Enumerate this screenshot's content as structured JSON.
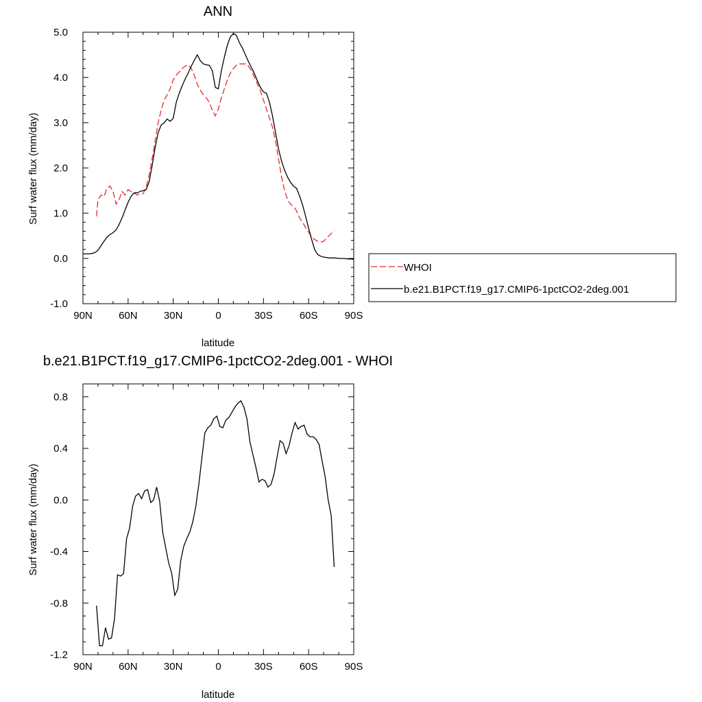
{
  "chart_data": [
    {
      "type": "line",
      "title": "ANN",
      "xlabel": "latitude",
      "ylabel": "Surf water flux (mm/day)",
      "xlim": [
        -90,
        90
      ],
      "ylim": [
        -1.0,
        5.0
      ],
      "x_ticks": [
        -90,
        -60,
        -30,
        0,
        30,
        60,
        90
      ],
      "x_tick_labels": [
        "90N",
        "60N",
        "30N",
        "0",
        "30S",
        "60S",
        "90S"
      ],
      "y_ticks": [
        -1.0,
        0.0,
        1.0,
        2.0,
        3.0,
        4.0,
        5.0
      ],
      "y_tick_labels": [
        "-1.0",
        "0.0",
        "1.0",
        "2.0",
        "3.0",
        "4.0",
        "5.0"
      ],
      "legend_position": "right",
      "series": [
        {
          "name": "WHOI",
          "color": "#e8262a",
          "dash": "dashed",
          "x": [
            -81,
            -80,
            -78,
            -76,
            -74,
            -72,
            -70,
            -68,
            -66,
            -64,
            -62,
            -60,
            -58,
            -56,
            -54,
            -52,
            -50,
            -48,
            -46,
            -44,
            -42,
            -40,
            -38,
            -36,
            -34,
            -32,
            -30,
            -28,
            -26,
            -24,
            -22,
            -20,
            -18,
            -16,
            -14,
            -12,
            -10,
            -8,
            -6,
            -4,
            -2,
            0,
            2,
            4,
            6,
            8,
            10,
            12,
            14,
            16,
            18,
            20,
            22,
            24,
            26,
            28,
            30,
            32,
            34,
            36,
            38,
            40,
            42,
            44,
            46,
            48,
            50,
            52,
            54,
            56,
            58,
            60,
            62,
            64,
            66,
            68,
            70,
            72,
            74,
            76,
            77
          ],
          "y": [
            0.93,
            1.3,
            1.4,
            1.37,
            1.55,
            1.6,
            1.48,
            1.2,
            1.3,
            1.48,
            1.4,
            1.52,
            1.48,
            1.45,
            1.4,
            1.43,
            1.43,
            1.58,
            1.85,
            2.2,
            2.6,
            3.0,
            3.28,
            3.5,
            3.62,
            3.75,
            3.95,
            4.05,
            4.12,
            4.2,
            4.25,
            4.28,
            4.2,
            4.05,
            3.85,
            3.72,
            3.62,
            3.55,
            3.45,
            3.28,
            3.15,
            3.3,
            3.55,
            3.75,
            3.95,
            4.1,
            4.2,
            4.27,
            4.3,
            4.3,
            4.3,
            4.25,
            4.15,
            4.0,
            3.85,
            3.7,
            3.5,
            3.3,
            3.1,
            2.9,
            2.6,
            2.2,
            1.8,
            1.5,
            1.3,
            1.2,
            1.15,
            1.05,
            0.9,
            0.8,
            0.68,
            0.58,
            0.48,
            0.42,
            0.38,
            0.36,
            0.38,
            0.45,
            0.52,
            0.58,
            0.62
          ]
        },
        {
          "name": "b.e21.B1PCT.f19_g17.CMIP6-1pctCO2-2deg.001",
          "color": "#000000",
          "dash": "solid",
          "x": [
            -90,
            -88,
            -86,
            -84,
            -82,
            -80,
            -78,
            -76,
            -74,
            -72,
            -70,
            -68,
            -66,
            -64,
            -62,
            -60,
            -58,
            -56,
            -54,
            -52,
            -50,
            -48,
            -46,
            -44,
            -42,
            -40,
            -38,
            -36,
            -34,
            -32,
            -30,
            -28,
            -26,
            -24,
            -22,
            -20,
            -18,
            -16,
            -14,
            -12,
            -10,
            -8,
            -6,
            -4,
            -2,
            0,
            2,
            4,
            6,
            8,
            10,
            12,
            14,
            16,
            18,
            20,
            22,
            24,
            26,
            28,
            30,
            32,
            34,
            36,
            38,
            40,
            42,
            44,
            46,
            48,
            50,
            52,
            54,
            56,
            58,
            60,
            62,
            64,
            66,
            68,
            70,
            72,
            74,
            76,
            78,
            80,
            82,
            84,
            86,
            88,
            90
          ],
          "y": [
            0.1,
            0.1,
            0.1,
            0.11,
            0.13,
            0.18,
            0.28,
            0.38,
            0.47,
            0.53,
            0.57,
            0.63,
            0.75,
            0.9,
            1.07,
            1.24,
            1.37,
            1.45,
            1.45,
            1.48,
            1.5,
            1.52,
            1.7,
            2.05,
            2.45,
            2.78,
            2.95,
            3.0,
            3.08,
            3.03,
            3.1,
            3.45,
            3.65,
            3.82,
            3.97,
            4.1,
            4.25,
            4.38,
            4.5,
            4.37,
            4.3,
            4.28,
            4.27,
            4.15,
            3.78,
            3.75,
            4.15,
            4.45,
            4.72,
            4.9,
            4.97,
            4.93,
            4.77,
            4.65,
            4.5,
            4.35,
            4.22,
            4.08,
            3.92,
            3.78,
            3.68,
            3.65,
            3.45,
            3.15,
            2.78,
            2.42,
            2.15,
            1.95,
            1.8,
            1.68,
            1.6,
            1.55,
            1.38,
            1.18,
            0.93,
            0.67,
            0.42,
            0.2,
            0.09,
            0.05,
            0.03,
            0.02,
            0.01,
            0.01,
            0.01,
            0.0,
            0.0,
            0.0,
            -0.01,
            -0.01,
            -0.02
          ]
        }
      ]
    },
    {
      "type": "line",
      "title": "b.e21.B1PCT.f19_g17.CMIP6-1pctCO2-2deg.001 - WHOI",
      "xlabel": "latitude",
      "ylabel": "Surf water flux (mm/day)",
      "xlim": [
        -90,
        90
      ],
      "ylim": [
        -1.2,
        0.9
      ],
      "x_ticks": [
        -90,
        -60,
        -30,
        0,
        30,
        60,
        90
      ],
      "x_tick_labels": [
        "90N",
        "60N",
        "30N",
        "0",
        "30S",
        "60S",
        "90S"
      ],
      "y_ticks": [
        -1.2,
        -0.8,
        -0.4,
        0.0,
        0.4,
        0.8
      ],
      "y_tick_labels": [
        "-1.2",
        "-0.8",
        "-0.4",
        "0.0",
        "0.4",
        "0.8"
      ],
      "series": [
        {
          "color": "#000000",
          "dash": "solid",
          "x": [
            -81,
            -79,
            -77,
            -75,
            -73,
            -71,
            -69,
            -67,
            -65,
            -63,
            -61,
            -59,
            -57,
            -55,
            -53,
            -51,
            -49,
            -47,
            -45,
            -43,
            -41,
            -39,
            -37,
            -35,
            -33,
            -31,
            -29,
            -27,
            -25,
            -23,
            -21,
            -19,
            -17,
            -15,
            -13,
            -11,
            -9,
            -7,
            -5,
            -3,
            -1,
            1,
            3,
            5,
            7,
            9,
            11,
            13,
            15,
            17,
            19,
            21,
            23,
            25,
            27,
            29,
            31,
            33,
            35,
            37,
            39,
            41,
            43,
            45,
            47,
            49,
            51,
            53,
            55,
            57,
            59,
            61,
            63,
            65,
            67,
            69,
            71,
            73,
            75,
            77
          ],
          "y": [
            -0.82,
            -1.13,
            -1.13,
            -0.99,
            -1.08,
            -1.07,
            -0.92,
            -0.58,
            -0.59,
            -0.57,
            -0.3,
            -0.22,
            -0.05,
            0.03,
            0.05,
            0.01,
            0.07,
            0.08,
            -0.02,
            0.0,
            0.1,
            -0.01,
            -0.25,
            -0.37,
            -0.49,
            -0.57,
            -0.74,
            -0.69,
            -0.47,
            -0.36,
            -0.3,
            -0.25,
            -0.17,
            -0.05,
            0.12,
            0.32,
            0.52,
            0.56,
            0.58,
            0.63,
            0.65,
            0.57,
            0.56,
            0.62,
            0.64,
            0.68,
            0.72,
            0.75,
            0.77,
            0.72,
            0.63,
            0.45,
            0.35,
            0.25,
            0.14,
            0.16,
            0.15,
            0.1,
            0.12,
            0.2,
            0.33,
            0.46,
            0.44,
            0.36,
            0.42,
            0.52,
            0.6,
            0.55,
            0.57,
            0.58,
            0.51,
            0.49,
            0.49,
            0.47,
            0.43,
            0.3,
            0.18,
            0.0,
            -0.12,
            -0.52
          ]
        }
      ]
    }
  ]
}
